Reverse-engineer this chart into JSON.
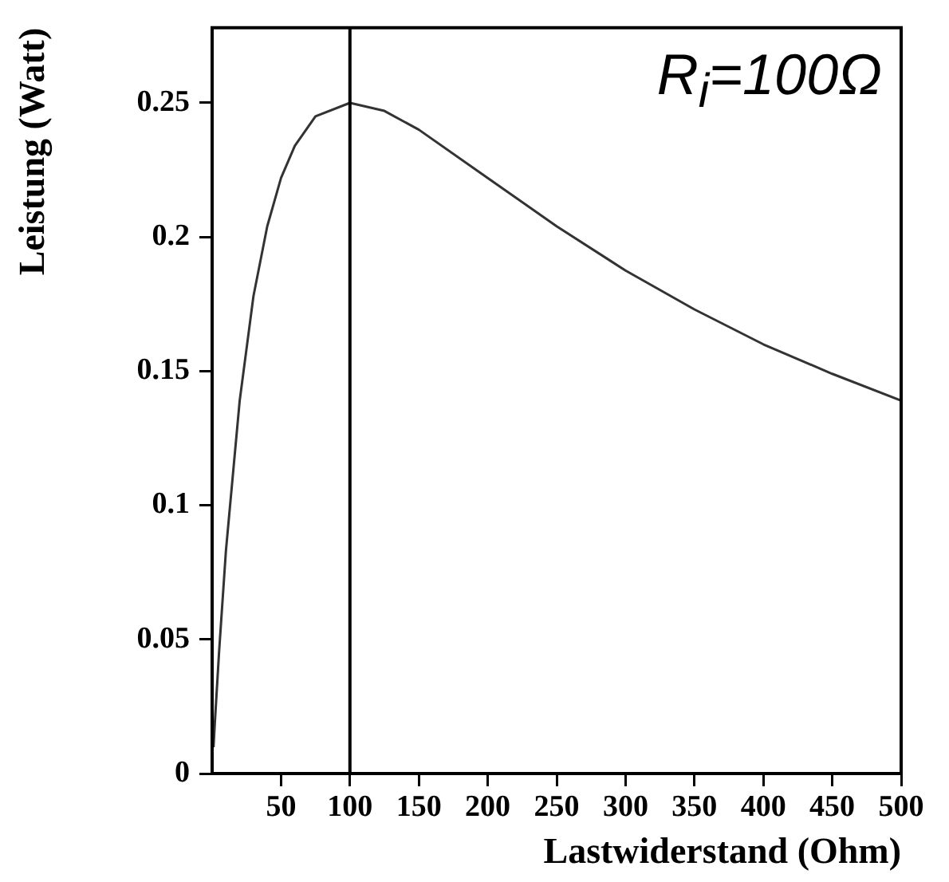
{
  "chart_data": {
    "type": "line",
    "xlabel": "Lastwiderstand (Ohm)",
    "ylabel": "Leistung (Watt)",
    "x": [
      1,
      2,
      5,
      10,
      20,
      30,
      40,
      50,
      60,
      75,
      100,
      125,
      150,
      200,
      250,
      300,
      350,
      400,
      450,
      500
    ],
    "series": [
      {
        "color": "#333333",
        "values": [
          0.0098,
          0.0192,
          0.045,
          0.083,
          0.139,
          0.178,
          0.204,
          0.222,
          0.234,
          0.245,
          0.25,
          0.247,
          0.24,
          0.222,
          0.204,
          0.1875,
          0.173,
          0.16,
          0.149,
          0.139
        ]
      }
    ],
    "xlim": [
      0,
      500
    ],
    "xticks": [
      50,
      100,
      150,
      200,
      250,
      300,
      350,
      400,
      450,
      500
    ],
    "ylim": [
      0,
      0.278
    ],
    "yticks": [
      0,
      0.05,
      0.1,
      0.15,
      0.2,
      0.25
    ],
    "ref_lines": [
      {
        "axis": "x",
        "value": 100,
        "color": "#000000"
      }
    ],
    "annotations": [
      "R$_{i}$=100Ω"
    ],
    "grid": false,
    "legend": false,
    "marker": "none",
    "line_style": "solid"
  }
}
